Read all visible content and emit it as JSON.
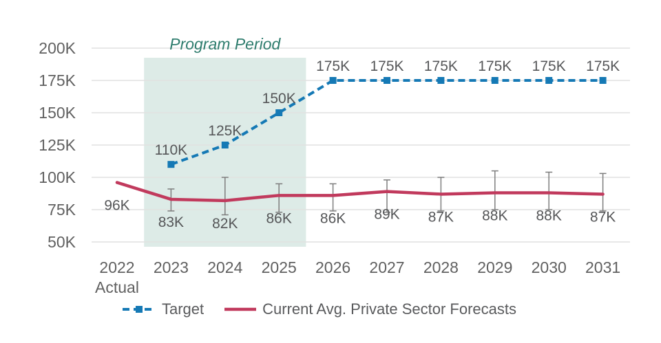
{
  "chart_data": {
    "type": "line",
    "annotation": "Program Period",
    "x_categories": [
      "2022",
      "2023",
      "2024",
      "2025",
      "2026",
      "2027",
      "2028",
      "2029",
      "2030",
      "2031"
    ],
    "x_axis_note": {
      "category_index": 0,
      "text": "Actual"
    },
    "y_axis": {
      "tick_values": [
        50,
        75,
        100,
        125,
        150,
        175,
        200
      ],
      "tick_labels": [
        "50K",
        "75K",
        "100K",
        "125K",
        "150K",
        "175K",
        "200K"
      ],
      "ylim": [
        50,
        200
      ],
      "grid": true
    },
    "program_period": {
      "start_category": "2023",
      "end_category": "2025",
      "start_index": 1,
      "end_index": 3
    },
    "series": [
      {
        "name": "Target",
        "style": "dashed-line-square-markers",
        "color": "#1579b5",
        "start_index": 1,
        "values": [
          110,
          125,
          150,
          175,
          175,
          175,
          175,
          175,
          175
        ],
        "labels": [
          "110K",
          "125K",
          "150K",
          "175K",
          "175K",
          "175K",
          "175K",
          "175K",
          "175K"
        ]
      },
      {
        "name": "Current Avg. Private Sector Forecasts",
        "style": "solid-line-with-error-bars",
        "color": "#c13a5d",
        "start_index": 0,
        "values": [
          96,
          83,
          82,
          86,
          86,
          89,
          87,
          88,
          88,
          87
        ],
        "labels": [
          "96K",
          "83K",
          "82K",
          "86K",
          "86K",
          "89K",
          "87K",
          "88K",
          "88K",
          "87K"
        ],
        "error_high": [
          null,
          91,
          100,
          95,
          95,
          98,
          100,
          105,
          104,
          103
        ],
        "error_low": [
          null,
          74,
          71,
          73,
          74,
          73,
          74,
          75,
          75,
          74
        ]
      }
    ],
    "legend": {
      "position": "bottom",
      "items": [
        {
          "label": "Target"
        },
        {
          "label": "Current Avg. Private Sector Forecasts"
        }
      ]
    }
  },
  "colors": {
    "target": "#1579b5",
    "forecast": "#c13a5d",
    "annotation": "#2f7d6e",
    "shade": "#ddebe7",
    "grid": "#e1e1e1",
    "tick_text": "#606060",
    "data_label_text": "#555658",
    "error_bar": "#7d7d7d",
    "background": "#ffffff"
  }
}
